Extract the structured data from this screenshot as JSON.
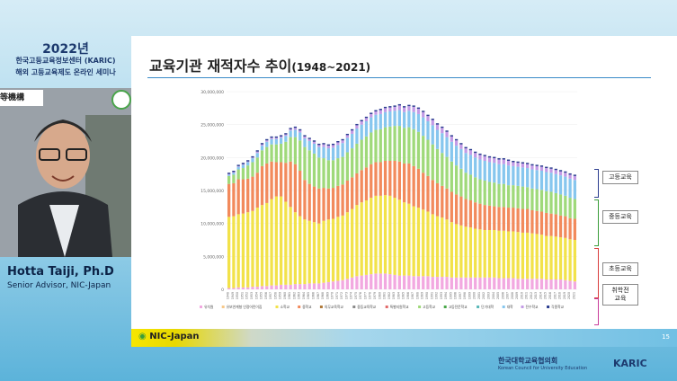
{
  "event": {
    "year": "2022년",
    "org": "한국고등교육정보센터 (KARIC)",
    "seminar": "해외 고등교육제도 온라인 세미나",
    "logo_text": "等機構"
  },
  "speaker": {
    "name": "Hotta Taiji, Ph.D",
    "role": "Senior Advisor, NIC-Japan"
  },
  "slide": {
    "title_main": "교육기관 재적자수 추이",
    "title_sub": "(1948~2021)",
    "page_number": "15",
    "footer_logo": "NIC-Japan",
    "brackets": [
      {
        "label": "고등교육",
        "color": "#2b3d8f"
      },
      {
        "label": "중등교육",
        "color": "#3a9d3a"
      },
      {
        "label": "초등교육",
        "color": "#d93c3c"
      },
      {
        "label": "취학전\n교육",
        "color": "#c93c9b"
      }
    ]
  },
  "chart_data": {
    "type": "bar",
    "stacked": true,
    "title": "",
    "xlabel": "",
    "ylabel": "",
    "ylim": [
      0,
      30000000
    ],
    "yticks": [
      "0",
      "5,000,000",
      "10,000,000",
      "15,000,000",
      "20,000,000",
      "25,000,000",
      "30,000,000"
    ],
    "x_start": 1948,
    "x_end": 2021,
    "series": [
      {
        "name": "유치원",
        "color": "#f2a8e0",
        "values": [
          0.2,
          0.2,
          0.3,
          0.3,
          0.3,
          0.4,
          0.4,
          0.5,
          0.5,
          0.6,
          0.6,
          0.7,
          0.7,
          0.7,
          0.8,
          0.8,
          0.8,
          0.9,
          0.9,
          0.9,
          1.0,
          1.1,
          1.2,
          1.3,
          1.4,
          1.6,
          1.8,
          2.0,
          2.1,
          2.2,
          2.3,
          2.4,
          2.4,
          2.4,
          2.3,
          2.2,
          2.1,
          2.1,
          2.1,
          2.0,
          2.0,
          2.0,
          2.0,
          1.9,
          1.9,
          1.9,
          1.9,
          1.8,
          1.8,
          1.8,
          1.8,
          1.8,
          1.8,
          1.8,
          1.8,
          1.8,
          1.8,
          1.7,
          1.7,
          1.7,
          1.7,
          1.6,
          1.6,
          1.6,
          1.6,
          1.6,
          1.6,
          1.5,
          1.5,
          1.5,
          1.5,
          1.4,
          1.3,
          1.2
        ]
      },
      {
        "name": "소학교",
        "color": "#f2e24a",
        "values": [
          10.8,
          10.9,
          11.1,
          11.2,
          11.4,
          11.5,
          12.0,
          12.3,
          12.6,
          13.1,
          13.5,
          13.4,
          12.6,
          11.8,
          10.9,
          10.3,
          9.8,
          9.5,
          9.3,
          9.1,
          9.4,
          9.5,
          9.5,
          9.7,
          9.8,
          10.1,
          10.4,
          10.8,
          11.1,
          11.3,
          11.6,
          11.8,
          11.8,
          11.9,
          11.9,
          11.7,
          11.5,
          11.1,
          10.9,
          10.6,
          10.4,
          10.1,
          9.8,
          9.5,
          9.2,
          9.0,
          8.7,
          8.4,
          8.1,
          7.9,
          7.7,
          7.6,
          7.4,
          7.3,
          7.2,
          7.2,
          7.2,
          7.2,
          7.2,
          7.1,
          7.1,
          7.1,
          7.0,
          7.0,
          6.9,
          6.8,
          6.7,
          6.6,
          6.6,
          6.5,
          6.4,
          6.4,
          6.3,
          6.3
        ]
      },
      {
        "name": "중학교",
        "color": "#f28a5c",
        "values": [
          5.0,
          5.0,
          5.3,
          5.2,
          5.1,
          5.2,
          5.3,
          5.9,
          6.0,
          5.7,
          5.2,
          5.2,
          5.9,
          6.9,
          7.3,
          6.9,
          6.0,
          5.6,
          5.4,
          5.3,
          5.0,
          4.7,
          4.7,
          4.7,
          4.7,
          4.8,
          4.8,
          4.8,
          4.9,
          5.0,
          5.1,
          5.1,
          5.1,
          5.2,
          5.3,
          5.6,
          5.8,
          5.9,
          6.1,
          6.1,
          5.9,
          5.6,
          5.4,
          5.2,
          5.0,
          4.8,
          4.7,
          4.6,
          4.5,
          4.4,
          4.2,
          4.1,
          4.0,
          3.9,
          3.8,
          3.7,
          3.6,
          3.6,
          3.6,
          3.6,
          3.6,
          3.6,
          3.6,
          3.6,
          3.5,
          3.5,
          3.5,
          3.5,
          3.4,
          3.4,
          3.3,
          3.3,
          3.2,
          3.2
        ]
      },
      {
        "name": "고등학교",
        "color": "#9fd97a",
        "values": [
          1.2,
          1.3,
          1.5,
          1.7,
          2.0,
          2.2,
          2.3,
          2.4,
          2.5,
          2.6,
          2.7,
          2.8,
          3.2,
          3.7,
          4.1,
          4.6,
          5.0,
          5.1,
          5.0,
          4.7,
          4.5,
          4.3,
          4.2,
          4.2,
          4.2,
          4.3,
          4.4,
          4.5,
          4.6,
          4.7,
          4.8,
          4.9,
          5.0,
          5.1,
          5.2,
          5.3,
          5.4,
          5.4,
          5.5,
          5.6,
          5.6,
          5.6,
          5.5,
          5.4,
          5.2,
          5.0,
          4.8,
          4.6,
          4.4,
          4.2,
          4.0,
          3.9,
          3.8,
          3.7,
          3.7,
          3.6,
          3.6,
          3.5,
          3.5,
          3.4,
          3.4,
          3.4,
          3.4,
          3.3,
          3.3,
          3.3,
          3.3,
          3.3,
          3.3,
          3.2,
          3.2,
          3.1,
          3.1,
          3.0
        ]
      },
      {
        "name": "대학",
        "color": "#86c6ee",
        "values": [
          0.2,
          0.3,
          0.4,
          0.5,
          0.5,
          0.6,
          0.7,
          0.7,
          0.8,
          0.8,
          0.8,
          0.9,
          0.9,
          1.0,
          1.1,
          1.2,
          1.3,
          1.4,
          1.5,
          1.6,
          1.7,
          1.8,
          1.9,
          2.0,
          2.1,
          2.2,
          2.2,
          2.3,
          2.3,
          2.3,
          2.3,
          2.3,
          2.3,
          2.3,
          2.3,
          2.3,
          2.4,
          2.4,
          2.5,
          2.6,
          2.7,
          2.8,
          2.8,
          2.9,
          2.9,
          3.0,
          3.0,
          3.0,
          3.0,
          3.0,
          3.0,
          3.0,
          3.0,
          3.0,
          3.0,
          3.0,
          3.0,
          3.0,
          3.0,
          3.0,
          2.9,
          2.9,
          2.9,
          2.9,
          2.9,
          2.9,
          2.9,
          2.9,
          2.9,
          2.9,
          2.9,
          2.9,
          2.9,
          2.9
        ]
      },
      {
        "name": "전수학교",
        "color": "#c39be6",
        "values": [
          0.1,
          0.1,
          0.1,
          0.1,
          0.1,
          0.1,
          0.2,
          0.2,
          0.2,
          0.2,
          0.2,
          0.2,
          0.2,
          0.2,
          0.3,
          0.3,
          0.3,
          0.3,
          0.3,
          0.3,
          0.4,
          0.4,
          0.4,
          0.4,
          0.4,
          0.4,
          0.5,
          0.5,
          0.5,
          0.5,
          0.5,
          0.5,
          0.6,
          0.6,
          0.6,
          0.6,
          0.7,
          0.7,
          0.7,
          0.8,
          0.8,
          0.8,
          0.8,
          0.8,
          0.8,
          0.8,
          0.8,
          0.8,
          0.8,
          0.7,
          0.7,
          0.7,
          0.7,
          0.7,
          0.7,
          0.7,
          0.7,
          0.7,
          0.7,
          0.7,
          0.6,
          0.6,
          0.6,
          0.6,
          0.6,
          0.6,
          0.6,
          0.6,
          0.6,
          0.6,
          0.6,
          0.6,
          0.6,
          0.6
        ]
      },
      {
        "name": "각종학교",
        "color": "#2b3d8f",
        "values": [
          0.2,
          0.2,
          0.2,
          0.2,
          0.2,
          0.2,
          0.2,
          0.2,
          0.2,
          0.2,
          0.2,
          0.2,
          0.2,
          0.2,
          0.2,
          0.2,
          0.2,
          0.2,
          0.2,
          0.2,
          0.2,
          0.2,
          0.2,
          0.2,
          0.2,
          0.2,
          0.2,
          0.2,
          0.2,
          0.2,
          0.2,
          0.2,
          0.2,
          0.2,
          0.2,
          0.2,
          0.2,
          0.2,
          0.2,
          0.2,
          0.2,
          0.2,
          0.2,
          0.2,
          0.2,
          0.2,
          0.2,
          0.2,
          0.2,
          0.2,
          0.2,
          0.2,
          0.2,
          0.2,
          0.2,
          0.2,
          0.2,
          0.2,
          0.2,
          0.2,
          0.2,
          0.2,
          0.2,
          0.2,
          0.2,
          0.2,
          0.2,
          0.2,
          0.2,
          0.2,
          0.2,
          0.2,
          0.2,
          0.2
        ]
      }
    ],
    "values_unit": "millions",
    "legend": [
      "유치원",
      "유보연계형 인정어린이집",
      "소학교",
      "중학교",
      "의무교육학교",
      "중등교육학교",
      "특별지원학교",
      "고등학교",
      "고등전문학교",
      "단기대학",
      "대학",
      "전수학교",
      "각종학교"
    ],
    "legend_position": "bottom"
  }
}
